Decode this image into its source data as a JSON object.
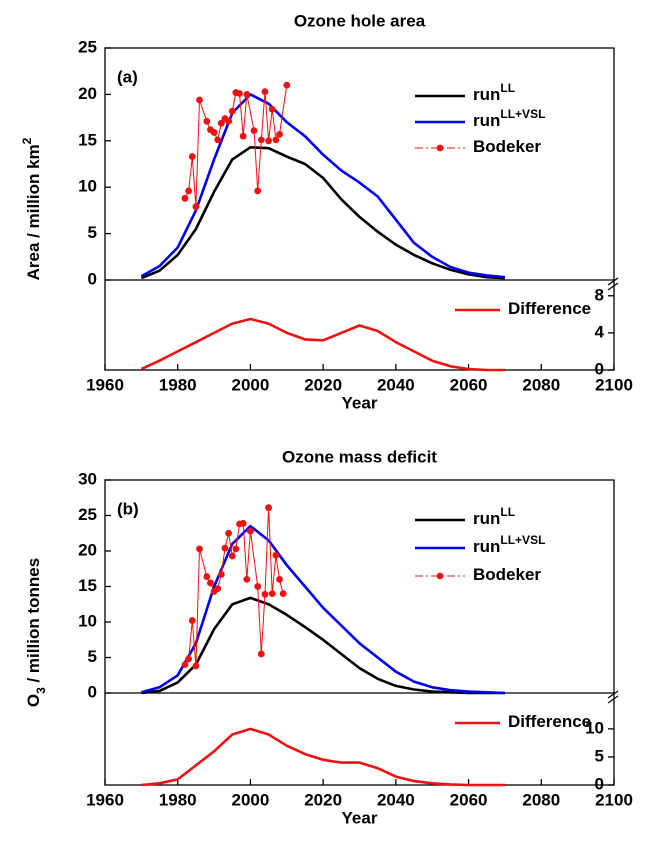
{
  "chart_data": [
    {
      "type": "line",
      "title": "Ozone hole area",
      "panel_label": "(a)",
      "ylabel": [
        {
          "text": "Area / million km"
        },
        {
          "text": "2",
          "shift": "super"
        }
      ],
      "xlabel": "Year",
      "xlim": [
        1960,
        2100
      ],
      "xticks": [
        1960,
        1980,
        2000,
        2020,
        2040,
        2060,
        2080,
        2100
      ],
      "ylim": [
        0,
        25
      ],
      "yticks": [
        0,
        5,
        10,
        15,
        20,
        25
      ],
      "y2lim": [
        0,
        9.7
      ],
      "y2ticks": [
        0,
        4,
        8
      ],
      "x": [
        1970,
        1975,
        1980,
        1985,
        1990,
        1995,
        2000,
        2005,
        2010,
        2015,
        2020,
        2025,
        2030,
        2035,
        2040,
        2045,
        2050,
        2055,
        2060,
        2065,
        2070
      ],
      "series": [
        {
          "name": "run",
          "name_superscript": "LL",
          "color": "#000000",
          "values": [
            0.2,
            1.0,
            2.7,
            5.5,
            9.5,
            13,
            14.3,
            14.2,
            13.3,
            12.5,
            11,
            8.7,
            6.8,
            5.2,
            3.8,
            2.7,
            1.8,
            1.1,
            0.6,
            0.3,
            0.2
          ]
        },
        {
          "name": "run",
          "name_superscript": "LL+VSL",
          "color": "#0000ee",
          "values": [
            0.4,
            1.5,
            3.5,
            7.5,
            13,
            18,
            20,
            19,
            17,
            15.5,
            13.5,
            11.8,
            10.5,
            9,
            6.5,
            4,
            2.5,
            1.4,
            0.8,
            0.5,
            0.3
          ]
        },
        {
          "name": "Bodeker",
          "color": "#ee1111",
          "marker": "circle",
          "x": [
            1982,
            1983,
            1984,
            1985,
            1986,
            1988,
            1989,
            1990,
            1991,
            1992,
            1993,
            1994,
            1995,
            1996,
            1997,
            1998,
            1999,
            2001,
            2002,
            2003,
            2004,
            2005,
            2006,
            2007,
            2008,
            2010
          ],
          "values": [
            8.8,
            9.6,
            13.3,
            7.9,
            19.4,
            17.1,
            16.2,
            15.9,
            15.1,
            16.9,
            17.4,
            17.1,
            18.2,
            20.2,
            20.1,
            15.5,
            20.0,
            16.1,
            9.6,
            15.1,
            20.3,
            15.0,
            18.4,
            15.1,
            15.7,
            21.0
          ]
        },
        {
          "name": "Difference",
          "color": "#ee1111",
          "axis": "y2",
          "values": [
            0.1,
            1,
            2,
            3,
            4,
            5,
            5.5,
            5,
            4,
            3.3,
            3.2,
            4,
            4.8,
            4.2,
            3,
            2,
            1,
            0.4,
            0.1,
            0,
            0
          ]
        }
      ]
    },
    {
      "type": "line",
      "title": "Ozone mass deficit",
      "panel_label": "(b)",
      "ylabel": [
        {
          "text": "O"
        },
        {
          "text": "3",
          "shift": "sub"
        },
        {
          "text": " / million tonnes"
        }
      ],
      "xlabel": "Year",
      "xlim": [
        1960,
        2100
      ],
      "xticks": [
        1960,
        1980,
        2000,
        2020,
        2040,
        2060,
        2080,
        2100
      ],
      "ylim": [
        0,
        30
      ],
      "yticks": [
        0,
        5,
        10,
        15,
        20,
        25,
        30
      ],
      "y2lim": [
        0,
        16.4
      ],
      "y2ticks": [
        0,
        5,
        10
      ],
      "x": [
        1970,
        1975,
        1980,
        1985,
        1990,
        1995,
        2000,
        2005,
        2010,
        2015,
        2020,
        2025,
        2030,
        2035,
        2040,
        2045,
        2050,
        2055,
        2060,
        2065,
        2070
      ],
      "series": [
        {
          "name": "run",
          "name_superscript": "LL",
          "color": "#000000",
          "values": [
            0,
            0.3,
            1.5,
            4,
            9,
            12.5,
            13.4,
            12.5,
            11,
            9.3,
            7.5,
            5.5,
            3.5,
            2,
            1,
            0.5,
            0.2,
            0.1,
            0,
            0,
            0
          ]
        },
        {
          "name": "run",
          "name_superscript": "LL+VSL",
          "color": "#0000ee",
          "values": [
            0.1,
            0.8,
            2.5,
            7,
            15,
            21,
            23.5,
            21.5,
            18,
            15,
            12,
            9.5,
            7,
            5,
            3,
            1.6,
            0.8,
            0.4,
            0.2,
            0.1,
            0
          ]
        },
        {
          "name": "Bodeker",
          "color": "#ee1111",
          "marker": "circle",
          "x": [
            1982,
            1983,
            1984,
            1985,
            1986,
            1988,
            1989,
            1990,
            1991,
            1992,
            1993,
            1994,
            1995,
            1996,
            1997,
            1998,
            1999,
            2000,
            2002,
            2003,
            2004,
            2005,
            2006,
            2007,
            2008,
            2009
          ],
          "values": [
            4,
            4.8,
            10.2,
            3.8,
            20.3,
            16.4,
            15.5,
            14.3,
            14.7,
            16.7,
            20.4,
            22.5,
            19.3,
            20.3,
            23.8,
            23.9,
            16,
            22.8,
            15,
            5.5,
            13.9,
            26.1,
            14,
            19.4,
            16,
            14
          ]
        },
        {
          "name": "Difference",
          "color": "#ee1111",
          "axis": "y2",
          "values": [
            0,
            0.3,
            1,
            3.5,
            6,
            9,
            10,
            9,
            7,
            5.5,
            4.5,
            4,
            4,
            3,
            1.5,
            0.7,
            0.3,
            0.1,
            0,
            0,
            0
          ]
        }
      ]
    }
  ]
}
